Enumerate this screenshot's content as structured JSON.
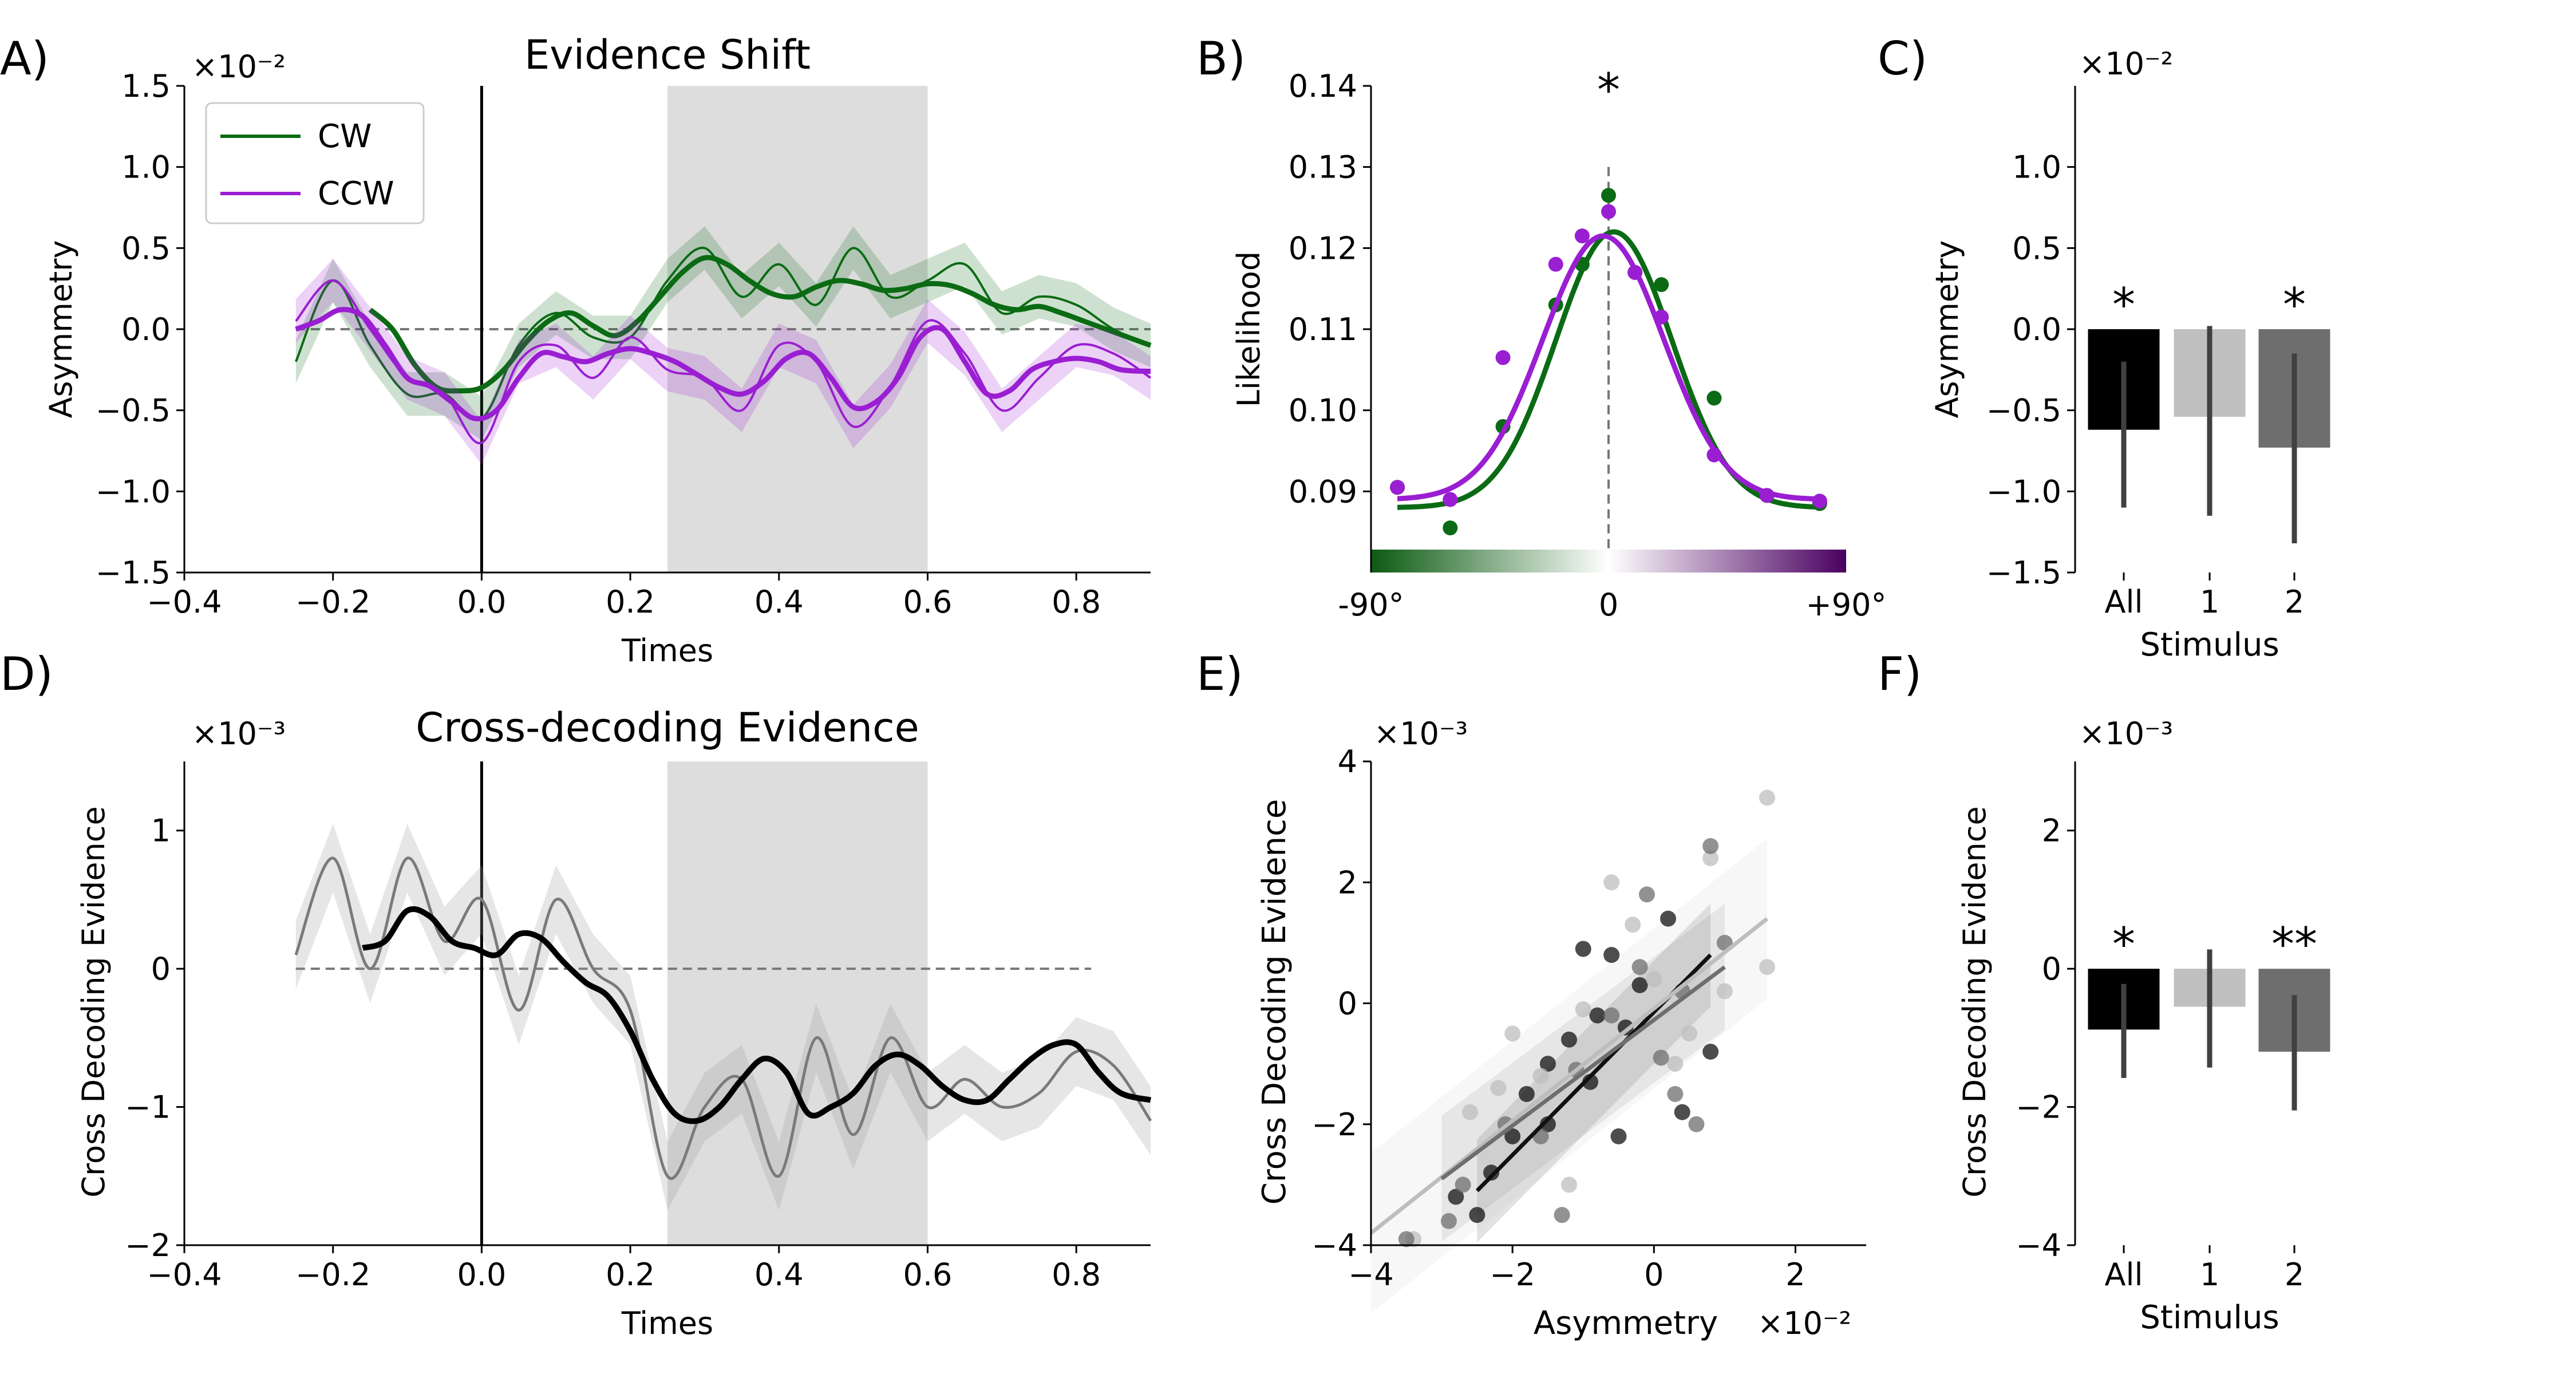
{
  "panel_labels": [
    "A)",
    "B)",
    "C)",
    "D)",
    "E)",
    "F)"
  ],
  "colors": {
    "cw": "#0b6b14",
    "ccw": "#9a1ed2",
    "black": "#000000",
    "bar_all": "#000000",
    "bar_1": "#c0c0c0",
    "bar_2": "#6e6e6e",
    "shade": "#dddddd",
    "err": "#404040"
  },
  "chart_data": [
    {
      "id": "A",
      "type": "line",
      "title": "Evidence Shift",
      "xlabel": "Times",
      "ylabel": "Asymmetry",
      "offset_label": "×10⁻²",
      "xlim": [
        -0.4,
        0.9
      ],
      "ylim": [
        -1.5,
        1.5
      ],
      "xticks": [
        -0.4,
        -0.2,
        0.0,
        0.2,
        0.4,
        0.6,
        0.8
      ],
      "xtick_labels": [
        "−0.4",
        "−0.2",
        "0.0",
        "0.2",
        "0.4",
        "0.6",
        "0.8"
      ],
      "yticks": [
        -1.5,
        -1.0,
        -0.5,
        0.0,
        0.5,
        1.0,
        1.5
      ],
      "ytick_labels": [
        "−1.5",
        "−1.0",
        "−0.5",
        "0.0",
        "0.5",
        "1.0",
        "1.5"
      ],
      "shaded_window": [
        0.25,
        0.6
      ],
      "legend": {
        "position": "top-left",
        "entries": [
          "CW",
          "CCW"
        ]
      },
      "series": [
        {
          "name": "CW",
          "color": "#0b6b14",
          "smooth_x": [
            -0.15,
            -0.12,
            -0.09,
            -0.06,
            -0.03,
            0.0,
            0.03,
            0.06,
            0.09,
            0.12,
            0.15,
            0.18,
            0.21,
            0.24,
            0.27,
            0.3,
            0.33,
            0.36,
            0.39,
            0.42,
            0.45,
            0.48,
            0.51,
            0.54,
            0.57,
            0.6,
            0.63,
            0.66,
            0.69,
            0.72,
            0.75,
            0.78,
            0.81,
            0.84,
            0.87,
            0.9
          ],
          "smooth_y": [
            0.12,
            0.0,
            -0.22,
            -0.36,
            -0.38,
            -0.36,
            -0.25,
            -0.08,
            0.05,
            0.1,
            0.02,
            -0.04,
            0.05,
            0.2,
            0.35,
            0.44,
            0.4,
            0.3,
            0.22,
            0.2,
            0.26,
            0.3,
            0.28,
            0.24,
            0.25,
            0.28,
            0.27,
            0.22,
            0.15,
            0.12,
            0.14,
            0.1,
            0.05,
            0.0,
            -0.05,
            -0.1
          ],
          "raw_x": [
            -0.25,
            -0.2,
            -0.15,
            -0.1,
            -0.05,
            0.0,
            0.05,
            0.1,
            0.15,
            0.2,
            0.25,
            0.3,
            0.35,
            0.4,
            0.45,
            0.5,
            0.55,
            0.6,
            0.65,
            0.7,
            0.75,
            0.8,
            0.85,
            0.9
          ],
          "raw_y": [
            -0.2,
            0.3,
            -0.1,
            -0.4,
            -0.4,
            -0.55,
            -0.1,
            0.1,
            -0.05,
            -0.05,
            0.3,
            0.5,
            0.2,
            0.4,
            0.15,
            0.5,
            0.2,
            0.3,
            0.4,
            0.1,
            0.2,
            0.15,
            0.0,
            -0.1
          ]
        },
        {
          "name": "CCW",
          "color": "#9a1ed2",
          "smooth_x": [
            -0.25,
            -0.22,
            -0.19,
            -0.16,
            -0.13,
            -0.1,
            -0.07,
            -0.04,
            -0.01,
            0.02,
            0.05,
            0.08,
            0.11,
            0.14,
            0.17,
            0.2,
            0.23,
            0.26,
            0.29,
            0.32,
            0.35,
            0.38,
            0.41,
            0.44,
            0.47,
            0.5,
            0.53,
            0.56,
            0.59,
            0.62,
            0.65,
            0.68,
            0.71,
            0.74,
            0.77,
            0.8,
            0.83,
            0.86,
            0.9
          ],
          "smooth_y": [
            0.0,
            0.05,
            0.12,
            0.08,
            -0.1,
            -0.3,
            -0.35,
            -0.45,
            -0.55,
            -0.5,
            -0.3,
            -0.15,
            -0.17,
            -0.2,
            -0.15,
            -0.12,
            -0.15,
            -0.2,
            -0.28,
            -0.36,
            -0.4,
            -0.32,
            -0.18,
            -0.15,
            -0.3,
            -0.48,
            -0.45,
            -0.3,
            -0.05,
            0.0,
            -0.2,
            -0.4,
            -0.38,
            -0.25,
            -0.2,
            -0.18,
            -0.2,
            -0.25,
            -0.26
          ],
          "raw_x": [
            -0.25,
            -0.2,
            -0.15,
            -0.1,
            -0.05,
            0.0,
            0.05,
            0.1,
            0.15,
            0.2,
            0.25,
            0.3,
            0.35,
            0.4,
            0.45,
            0.5,
            0.55,
            0.6,
            0.65,
            0.7,
            0.75,
            0.8,
            0.85,
            0.9
          ],
          "raw_y": [
            0.05,
            0.3,
            0.0,
            -0.3,
            -0.4,
            -0.7,
            -0.2,
            -0.1,
            -0.3,
            -0.05,
            -0.25,
            -0.3,
            -0.5,
            -0.1,
            -0.2,
            -0.6,
            -0.35,
            0.05,
            -0.15,
            -0.5,
            -0.3,
            -0.1,
            -0.15,
            -0.3
          ]
        }
      ]
    },
    {
      "id": "B",
      "type": "line",
      "ylabel": "Likelihood",
      "xlim": [
        -90,
        90
      ],
      "ylim": [
        0.08,
        0.14
      ],
      "yticks": [
        0.09,
        0.1,
        0.11,
        0.12,
        0.13,
        0.14
      ],
      "ytick_labels": [
        "0.09",
        "0.10",
        "0.11",
        "0.12",
        "0.13",
        "0.14"
      ],
      "xtick_labels": [
        "-90°",
        "0",
        "+90°"
      ],
      "significance": "*",
      "series": [
        {
          "name": "CW",
          "color": "#0b6b14",
          "points_x": [
            -80,
            -60,
            -40,
            -20,
            -10,
            0,
            10,
            20,
            40,
            60,
            80
          ],
          "points_y": [
            0.0905,
            0.0855,
            0.098,
            0.113,
            0.118,
            0.1265,
            0.117,
            0.1155,
            0.1015,
            0.0895,
            0.0885
          ],
          "fit_peak_x": 2,
          "fit_amp": 0.034,
          "fit_base": 0.088,
          "fit_sigma": 22
        },
        {
          "name": "CCW",
          "color": "#9a1ed2",
          "points_x": [
            -80,
            -60,
            -40,
            -20,
            -10,
            0,
            10,
            20,
            40,
            60,
            80
          ],
          "points_y": [
            0.0905,
            0.089,
            0.1065,
            0.118,
            0.1215,
            0.1245,
            0.117,
            0.1115,
            0.0945,
            0.0895,
            0.0888
          ],
          "fit_peak_x": -2,
          "fit_amp": 0.0325,
          "fit_base": 0.089,
          "fit_sigma": 23
        }
      ]
    },
    {
      "id": "C",
      "type": "bar",
      "xlabel": "Stimulus",
      "ylabel": "Asymmetry",
      "offset_label": "×10⁻²",
      "ylim": [
        -1.5,
        1.5
      ],
      "yticks": [
        -1.5,
        -1.0,
        -0.5,
        0.0,
        0.5,
        1.0
      ],
      "ytick_labels": [
        "−1.5",
        "−1.0",
        "−0.5",
        "0.0",
        "0.5",
        "1.0"
      ],
      "categories": [
        "All",
        "1",
        "2"
      ],
      "values": [
        -0.62,
        -0.54,
        -0.73
      ],
      "err_low": [
        -1.1,
        -1.15,
        -1.32
      ],
      "err_high": [
        -0.2,
        0.02,
        -0.15
      ],
      "significance": [
        "*",
        "",
        "*"
      ]
    },
    {
      "id": "D",
      "type": "line",
      "title": "Cross-decoding Evidence",
      "xlabel": "Times",
      "ylabel": "Cross Decoding Evidence",
      "offset_label": "×10⁻³",
      "xlim": [
        -0.4,
        0.9
      ],
      "ylim": [
        -2,
        1.5
      ],
      "xticks": [
        -0.4,
        -0.2,
        0.0,
        0.2,
        0.4,
        0.6,
        0.8
      ],
      "xtick_labels": [
        "−0.4",
        "−0.2",
        "0.0",
        "0.2",
        "0.4",
        "0.6",
        "0.8"
      ],
      "yticks": [
        -2,
        -1,
        0,
        1
      ],
      "ytick_labels": [
        "−2",
        "−1",
        "0",
        "1"
      ],
      "shaded_window": [
        0.25,
        0.6
      ],
      "series": [
        {
          "name": "smooth",
          "color": "#000000",
          "x": [
            -0.16,
            -0.13,
            -0.1,
            -0.07,
            -0.04,
            -0.01,
            0.02,
            0.05,
            0.08,
            0.11,
            0.14,
            0.17,
            0.2,
            0.23,
            0.26,
            0.29,
            0.32,
            0.35,
            0.38,
            0.41,
            0.44,
            0.47,
            0.5,
            0.53,
            0.56,
            0.59,
            0.62,
            0.65,
            0.68,
            0.71,
            0.74,
            0.77,
            0.8,
            0.83,
            0.86,
            0.9
          ],
          "y": [
            0.15,
            0.2,
            0.42,
            0.38,
            0.2,
            0.15,
            0.1,
            0.25,
            0.22,
            0.05,
            -0.1,
            -0.2,
            -0.45,
            -0.8,
            -1.05,
            -1.1,
            -1.0,
            -0.8,
            -0.65,
            -0.75,
            -1.05,
            -1.0,
            -0.9,
            -0.7,
            -0.62,
            -0.7,
            -0.85,
            -0.95,
            -0.95,
            -0.8,
            -0.65,
            -0.55,
            -0.55,
            -0.75,
            -0.9,
            -0.95
          ]
        },
        {
          "name": "raw",
          "color": "#7a7a7a",
          "x": [
            -0.25,
            -0.2,
            -0.15,
            -0.1,
            -0.05,
            0.0,
            0.05,
            0.1,
            0.15,
            0.2,
            0.25,
            0.3,
            0.35,
            0.4,
            0.45,
            0.5,
            0.55,
            0.6,
            0.65,
            0.7,
            0.75,
            0.8,
            0.85,
            0.9
          ],
          "y": [
            0.1,
            0.8,
            0.0,
            0.8,
            0.2,
            0.5,
            -0.3,
            0.5,
            0.0,
            -0.3,
            -1.5,
            -1.0,
            -0.8,
            -1.5,
            -0.5,
            -1.2,
            -0.5,
            -1.0,
            -0.8,
            -1.0,
            -0.9,
            -0.6,
            -0.7,
            -1.1
          ]
        }
      ]
    },
    {
      "id": "E",
      "type": "scatter",
      "xlabel": "Asymmetry",
      "ylabel": "Cross Decoding Evidence",
      "x_offset_label": "×10⁻²",
      "y_offset_label": "×10⁻³",
      "xlim": [
        -4,
        3
      ],
      "ylim": [
        -4,
        4
      ],
      "xticks": [
        -4,
        -2,
        0,
        2
      ],
      "xtick_labels": [
        "−4",
        "−2",
        "0",
        "2"
      ],
      "yticks": [
        -4,
        -2,
        0,
        2,
        4
      ],
      "ytick_labels": [
        "−4",
        "−2",
        "0",
        "2",
        "4"
      ],
      "series": [
        {
          "name": "All",
          "color": "#111111",
          "points": [
            [
              -2.5,
              -3.5
            ],
            [
              -2.3,
              -2.8
            ],
            [
              -2.0,
              -2.2
            ],
            [
              -1.8,
              -1.5
            ],
            [
              -1.5,
              -1.0
            ],
            [
              -1.2,
              -0.6
            ],
            [
              -1.0,
              0.9
            ],
            [
              -0.8,
              -0.2
            ],
            [
              -0.6,
              0.8
            ],
            [
              -0.4,
              -0.4
            ],
            [
              -0.2,
              0.3
            ],
            [
              0.2,
              1.4
            ],
            [
              0.4,
              -1.8
            ],
            [
              -1.5,
              -2.0
            ],
            [
              -0.5,
              -2.2
            ],
            [
              0.8,
              -0.8
            ],
            [
              -2.8,
              -3.2
            ],
            [
              -0.9,
              -1.3
            ]
          ],
          "fit": [
            [
              -2.5,
              -3.1
            ],
            [
              0.8,
              0.8
            ]
          ]
        },
        {
          "name": "1",
          "color": "#bdbdbd",
          "points": [
            [
              -3.4,
              -3.9
            ],
            [
              -2.6,
              -1.8
            ],
            [
              -2.0,
              -0.5
            ],
            [
              -1.6,
              -1.2
            ],
            [
              -1.0,
              -0.1
            ],
            [
              -0.6,
              2.0
            ],
            [
              -0.3,
              1.3
            ],
            [
              0.0,
              0.4
            ],
            [
              0.5,
              -0.5
            ],
            [
              1.0,
              0.2
            ],
            [
              1.6,
              3.4
            ],
            [
              1.6,
              0.6
            ],
            [
              -1.2,
              -3.0
            ],
            [
              0.3,
              -1.0
            ],
            [
              -2.2,
              -1.4
            ],
            [
              0.8,
              2.4
            ]
          ],
          "fit": [
            [
              -4.0,
              -3.8
            ],
            [
              1.6,
              1.4
            ]
          ]
        },
        {
          "name": "2",
          "color": "#6e6e6e",
          "points": [
            [
              -3.5,
              -3.9
            ],
            [
              -2.7,
              -3.0
            ],
            [
              -2.1,
              -2.0
            ],
            [
              -1.6,
              -2.2
            ],
            [
              -1.1,
              -1.1
            ],
            [
              -0.6,
              -0.2
            ],
            [
              -0.2,
              0.6
            ],
            [
              0.1,
              -0.9
            ],
            [
              0.3,
              -1.5
            ],
            [
              0.6,
              -2.0
            ],
            [
              0.8,
              2.6
            ],
            [
              1.0,
              1.0
            ],
            [
              -1.3,
              -3.5
            ],
            [
              -0.1,
              1.8
            ],
            [
              -2.9,
              -3.6
            ],
            [
              0.4,
              0.2
            ]
          ],
          "fit": [
            [
              -3.0,
              -2.9
            ],
            [
              1.0,
              0.6
            ]
          ]
        }
      ]
    },
    {
      "id": "F",
      "type": "bar",
      "xlabel": "Stimulus",
      "ylabel": "Cross Decoding Evidence",
      "offset_label": "×10⁻³",
      "ylim": [
        -4,
        3
      ],
      "yticks": [
        -4,
        -2,
        0,
        2
      ],
      "ytick_labels": [
        "−4",
        "−2",
        "0",
        "2"
      ],
      "categories": [
        "All",
        "1",
        "2"
      ],
      "values": [
        -0.88,
        -0.55,
        -1.2
      ],
      "err_low": [
        -1.58,
        -1.43,
        -2.05
      ],
      "err_high": [
        -0.22,
        0.28,
        -0.38
      ],
      "significance": [
        "*",
        "",
        "**"
      ]
    }
  ]
}
